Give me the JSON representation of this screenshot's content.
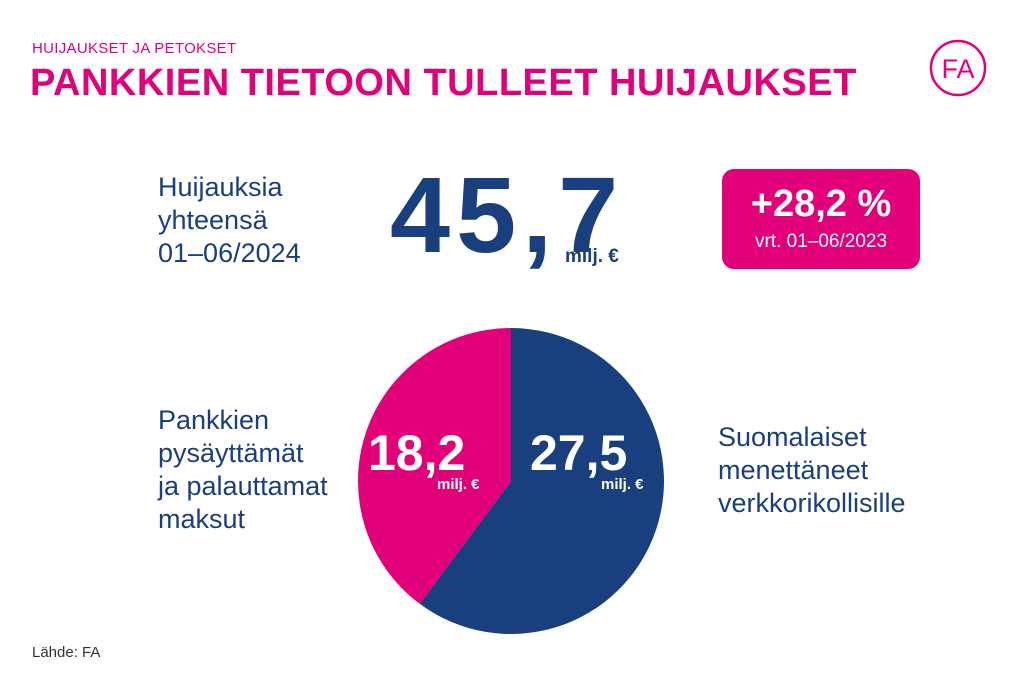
{
  "header": {
    "kicker": "HUIJAUKSET JA PETOKSET",
    "title": "PANKKIEN TIETOON TULLEET HUIJAUKSET",
    "logo_text": "FA",
    "logo_icon": "fa-logo-icon"
  },
  "summary": {
    "label": "Huijauksia\nyhteensä\n01–06/2024",
    "value": "45,7",
    "unit": "milj. €",
    "change_value": "+28,2 %",
    "change_sub": "vrt. 01–06/2023"
  },
  "labels": {
    "left": "Pankkien\npysäyttämät\nja palauttamat\nmaksut",
    "right": "Suomalaiset\nmenettäneet\nverkkorikollisille"
  },
  "chart_data": {
    "type": "pie",
    "title": "",
    "unit": "milj. €",
    "slices": [
      {
        "label": "Suomalaiset menettäneet verkkorikollisille",
        "value": 27.5,
        "value_text": "27,5",
        "color": "#1a3f7f"
      },
      {
        "label": "Pankkien pysäyttämät ja palauttamat maksut",
        "value": 18.2,
        "value_text": "18,2",
        "color": "#e2007a"
      }
    ]
  },
  "source": "Lähde: FA",
  "colors": {
    "brand": "#e2007a",
    "navy": "#1a3f7f"
  }
}
